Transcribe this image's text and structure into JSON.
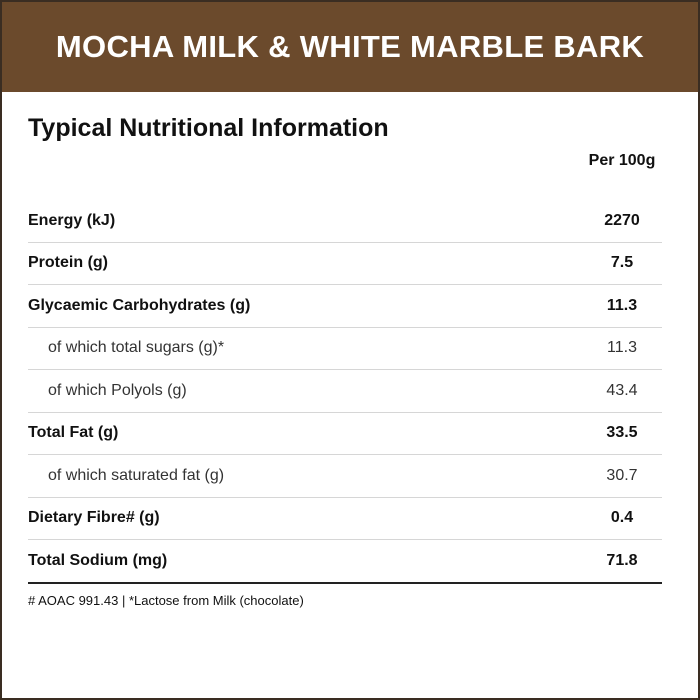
{
  "header": {
    "title": "MOCHA MILK & WHITE MARBLE BARK"
  },
  "section_title": "Typical Nutritional Information",
  "table": {
    "column_header": "Per 100g",
    "rows": [
      [
        "Energy (kJ)",
        "2270"
      ],
      [
        "Protein (g)",
        "7.5"
      ],
      [
        "Glycaemic Carbohydrates (g)",
        "11.3"
      ],
      [
        "of which total sugars (g)*",
        "11.3"
      ],
      [
        "of which Polyols (g)",
        "43.4"
      ],
      [
        "Total Fat (g)",
        "33.5"
      ],
      [
        "of which saturated fat (g)",
        "30.7"
      ],
      [
        "Dietary Fibre# (g)",
        "0.4"
      ],
      [
        "Total Sodium (mg)",
        "71.8"
      ]
    ]
  },
  "footnote": "# AOAC 991.43 | *Lactose from Milk (chocolate)"
}
